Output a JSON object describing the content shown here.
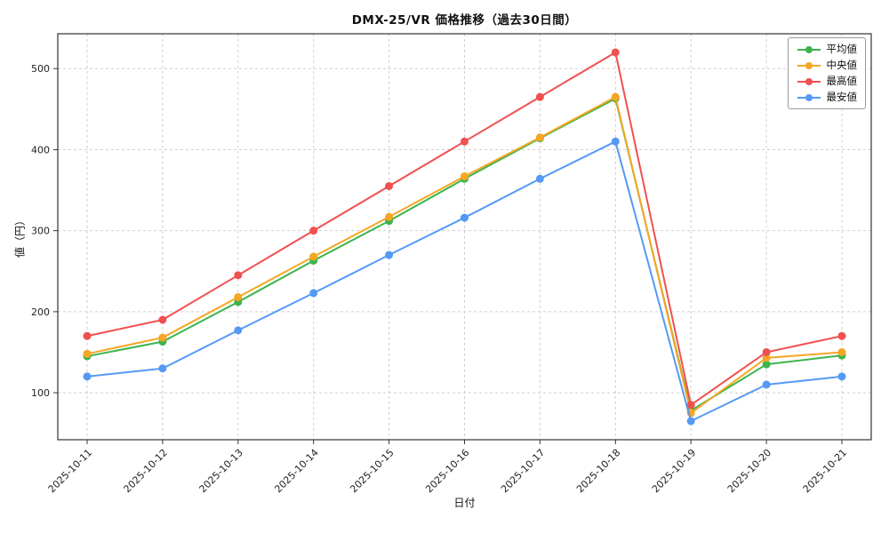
{
  "chart_data": {
    "type": "line",
    "title": "DMX-25/VR 価格推移（過去30日間）",
    "xlabel": "日付",
    "ylabel": "値（円）",
    "x": [
      "2025-10-11",
      "2025-10-12",
      "2025-10-13",
      "2025-10-14",
      "2025-10-15",
      "2025-10-16",
      "2025-10-17",
      "2025-10-18",
      "2025-10-19",
      "2025-10-20",
      "2025-10-21"
    ],
    "series": [
      {
        "name": "平均値",
        "color": "#3cb44c",
        "values": [
          145,
          163,
          212,
          263,
          312,
          364,
          414,
          463,
          78,
          135,
          146
        ]
      },
      {
        "name": "中央値",
        "color": "#f5a623",
        "values": [
          148,
          168,
          218,
          268,
          317,
          367,
          415,
          465,
          75,
          143,
          150
        ]
      },
      {
        "name": "最高値",
        "color": "#f05050",
        "values": [
          170,
          190,
          245,
          300,
          355,
          410,
          465,
          520,
          85,
          150,
          170
        ]
      },
      {
        "name": "最安値",
        "color": "#5599f5",
        "values": [
          120,
          130,
          177,
          223,
          270,
          316,
          364,
          410,
          65,
          110,
          120
        ]
      }
    ],
    "ylim": [
      42,
      543
    ],
    "yticks": [
      100,
      200,
      300,
      400,
      500
    ],
    "grid": true,
    "grid_style": "dashed",
    "grid_color": "#cfcfcf",
    "axes_color": "#333333",
    "legend_position": "upper right"
  }
}
